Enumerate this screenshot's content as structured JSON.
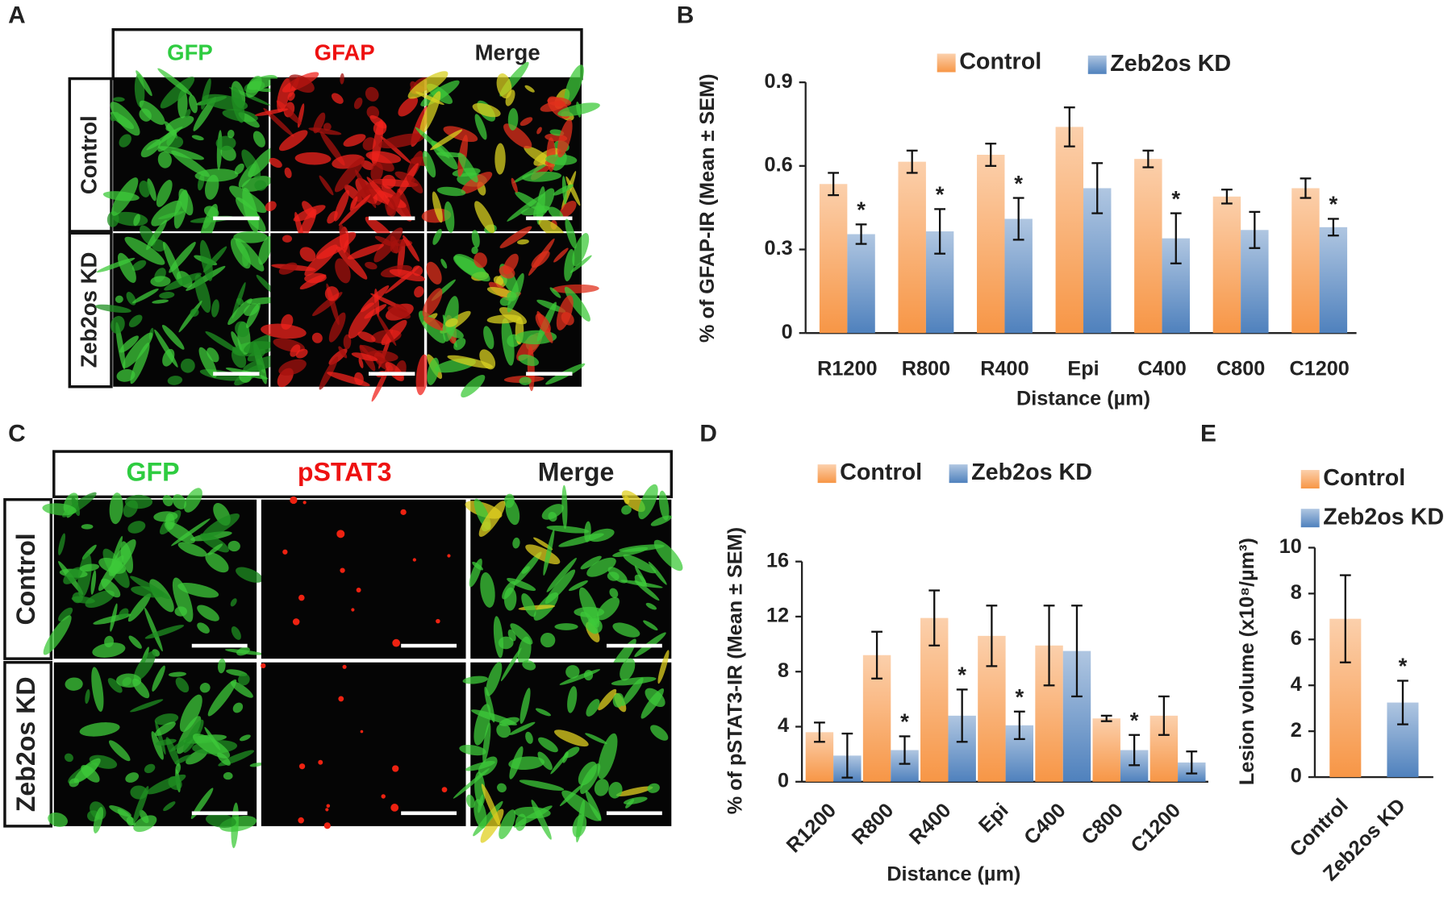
{
  "image_panels": [
    {
      "panel": "A",
      "columns": [
        "GFP",
        "GFAP",
        "Merge"
      ],
      "rows": [
        "Control",
        "Zeb2os KD"
      ]
    },
    {
      "panel": "C",
      "columns": [
        "GFP",
        "pSTAT3",
        "Merge"
      ],
      "rows": [
        "Control",
        "Zeb2os KD"
      ]
    }
  ],
  "chart_data": [
    {
      "type": "bar",
      "panel": "B",
      "ylabel": "% of GFAP-IR (Mean ± SEM)",
      "xlabel": "Distance (µm)",
      "categories": [
        "R1200",
        "R800",
        "R400",
        "Epi",
        "C400",
        "C800",
        "C1200"
      ],
      "series": [
        {
          "name": "Control",
          "color": "#f79646",
          "values": [
            0.535,
            0.615,
            0.64,
            0.74,
            0.625,
            0.49,
            0.52
          ],
          "errors": [
            0.04,
            0.04,
            0.04,
            0.07,
            0.03,
            0.025,
            0.035
          ],
          "stars": [
            null,
            null,
            null,
            null,
            null,
            null,
            null
          ]
        },
        {
          "name": "Zeb2os KD",
          "color": "#4f81bd",
          "values": [
            0.355,
            0.365,
            0.41,
            0.52,
            0.34,
            0.37,
            0.38
          ],
          "errors": [
            0.035,
            0.08,
            0.075,
            0.09,
            0.09,
            0.065,
            0.03
          ],
          "stars": [
            "*",
            "*",
            "*",
            null,
            "*",
            null,
            "*"
          ]
        }
      ],
      "ylim": [
        0,
        0.9
      ],
      "yticks": [
        0,
        0.3,
        0.6,
        0.9
      ],
      "legend": "top",
      "rotate_labels": false
    },
    {
      "type": "bar",
      "panel": "D",
      "ylabel": "% of pSTAT3-IR (Mean ± SEM)",
      "xlabel": "Distance (µm)",
      "categories": [
        "R1200",
        "R800",
        "R400",
        "Epi",
        "C400",
        "C800",
        "C1200"
      ],
      "series": [
        {
          "name": "Control",
          "color": "#f79646",
          "values": [
            3.6,
            9.2,
            11.9,
            10.6,
            9.9,
            4.6,
            4.8
          ],
          "errors": [
            0.7,
            1.7,
            2.0,
            2.2,
            2.9,
            0.2,
            1.4
          ],
          "stars": [
            null,
            null,
            null,
            null,
            null,
            null,
            null
          ]
        },
        {
          "name": "Zeb2os KD",
          "color": "#4f81bd",
          "values": [
            1.9,
            2.3,
            4.8,
            4.1,
            9.5,
            2.3,
            1.4
          ],
          "errors": [
            1.6,
            1.0,
            1.9,
            1.0,
            3.3,
            1.1,
            0.8
          ],
          "stars": [
            null,
            "*",
            "*",
            "*",
            null,
            "*",
            null
          ]
        }
      ],
      "ylim": [
        0,
        16
      ],
      "yticks": [
        0,
        4,
        8,
        12,
        16
      ],
      "legend": "top",
      "rotate_labels": true
    },
    {
      "type": "bar",
      "panel": "E",
      "ylabel": "Lesion volume (x10⁸/µm³)",
      "categories": [
        "Control",
        "Zeb2os KD"
      ],
      "colors": [
        "#f79646",
        "#4f81bd"
      ],
      "values": [
        6.9,
        3.25
      ],
      "errors": [
        1.9,
        0.95
      ],
      "stars": [
        null,
        "*"
      ],
      "ylim": [
        0,
        10
      ],
      "yticks": [
        0,
        2,
        4,
        6,
        8,
        10
      ],
      "legend": "top-left",
      "rotate_labels": true
    }
  ]
}
